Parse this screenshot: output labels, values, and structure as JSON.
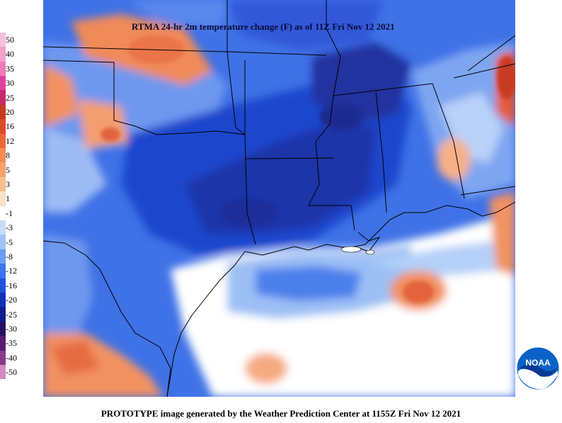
{
  "title": "RTMA 24-hr 2m temperature change (F) as of 11Z Fri Nov 12 2021",
  "footer": "PROTOTYPE image generated by the Weather Prediction Center at 1155Z Fri Nov 12 2021",
  "logo_text": "NOAA",
  "legend": {
    "items": [
      {
        "label": "50",
        "color": "#f6c0dc"
      },
      {
        "label": "40",
        "color": "#f3a0c8"
      },
      {
        "label": "35",
        "color": "#ee7ab8"
      },
      {
        "label": "30",
        "color": "#e2409e"
      },
      {
        "label": "25",
        "color": "#c42a6a"
      },
      {
        "label": "20",
        "color": "#c43a1e"
      },
      {
        "label": "16",
        "color": "#dc4a2a"
      },
      {
        "label": "12",
        "color": "#ec6a3a"
      },
      {
        "label": "8",
        "color": "#f38a52"
      },
      {
        "label": "5",
        "color": "#f6a26a"
      },
      {
        "label": "3",
        "color": "#f8c08c"
      },
      {
        "label": "1",
        "color": "#fbe0c8"
      },
      {
        "label": "-1",
        "color": "#ffffff"
      },
      {
        "label": "-3",
        "color": "#c8dcfa"
      },
      {
        "label": "-5",
        "color": "#a0c4f6"
      },
      {
        "label": "-8",
        "color": "#6a9cf2"
      },
      {
        "label": "-12",
        "color": "#3a74ec"
      },
      {
        "label": "-16",
        "color": "#1e52da"
      },
      {
        "label": "-20",
        "color": "#1232b8"
      },
      {
        "label": "-25",
        "color": "#0e1e8c"
      },
      {
        "label": "-30",
        "color": "#2a0e62"
      },
      {
        "label": "-35",
        "color": "#5a1a72"
      },
      {
        "label": "-40",
        "color": "#8a3a8a"
      },
      {
        "label": "-50",
        "color": "#d488c4"
      }
    ]
  },
  "colors": {
    "ocean_white": "#ffffff",
    "light_blue": "#a8c8f8",
    "mid_blue": "#4c80ea",
    "deep_blue": "#1c42c8",
    "darkest_blue": "#1a30a6",
    "orange": "#f29262",
    "red_orange": "#e2643c",
    "border": "#000000",
    "logo_blue": "#0a62c8"
  }
}
